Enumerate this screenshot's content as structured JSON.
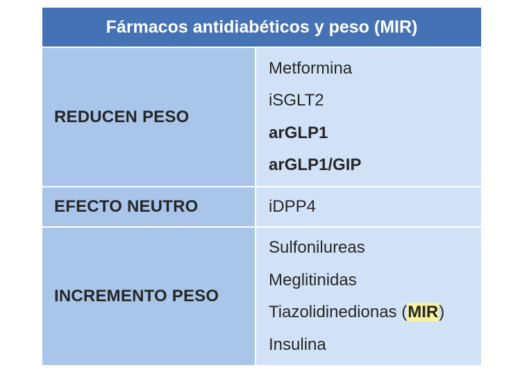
{
  "title": "Fármacos antidiabéticos y peso (MIR)",
  "rows": [
    {
      "category": "REDUCEN PESO",
      "drugs": [
        "Metformina",
        "iSGLT2",
        "arGLP1",
        "arGLP1/GIP"
      ]
    },
    {
      "category": "EFECTO NEUTRO",
      "drugs": [
        "iDPP4"
      ]
    },
    {
      "category": "INCREMENTO PESO",
      "drugs": [
        "Sulfonilureas",
        "Meglitinidas",
        "Tiazolidinedionas",
        "Insulina"
      ],
      "highlight": {
        "open": "(",
        "text": "MIR",
        "close": ")"
      }
    }
  ],
  "colors": {
    "header": "#4472b4",
    "category_cell": "#a9c6ea",
    "drug_cell": "#d2e2f6",
    "highlight": "#f7f2a0"
  }
}
